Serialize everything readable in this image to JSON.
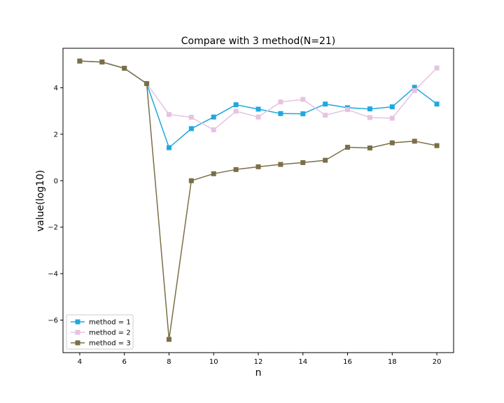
{
  "chart_data": {
    "type": "line",
    "title": "Compare with 3 method(N=21)",
    "xlabel": "n",
    "ylabel": "value(log10)",
    "xlim": [
      3.25,
      20.75
    ],
    "ylim": [
      -7.4,
      5.7
    ],
    "xticks": [
      4,
      6,
      8,
      10,
      12,
      14,
      16,
      18,
      20
    ],
    "yticks": [
      -6,
      -4,
      -2,
      0,
      2,
      4
    ],
    "ytick_labels": [
      "−6",
      "−4",
      "−2",
      "0",
      "2",
      "4"
    ],
    "grid": false,
    "legend_position": "lower-left",
    "x": [
      4,
      5,
      6,
      7,
      8,
      9,
      10,
      11,
      12,
      13,
      14,
      15,
      16,
      17,
      18,
      19,
      20
    ],
    "series": [
      {
        "name": "method = 1",
        "color": "#1fa8de",
        "values": [
          5.15,
          5.11,
          4.84,
          4.18,
          1.42,
          2.24,
          2.74,
          3.27,
          3.08,
          2.89,
          2.88,
          3.3,
          3.14,
          3.09,
          3.18,
          4.02,
          3.3
        ]
      },
      {
        "name": "method = 2",
        "color": "#e6c3e3",
        "values": [
          5.15,
          5.11,
          4.84,
          4.18,
          2.85,
          2.73,
          2.19,
          2.99,
          2.74,
          3.39,
          3.5,
          2.82,
          3.06,
          2.72,
          2.69,
          3.88,
          4.85
        ]
      },
      {
        "name": "method = 3",
        "color": "#7b6f48",
        "values": [
          5.15,
          5.11,
          4.84,
          4.18,
          -6.83,
          0.0,
          0.3,
          0.48,
          0.6,
          0.7,
          0.78,
          0.88,
          1.44,
          1.41,
          1.63,
          1.7,
          1.51
        ]
      }
    ]
  }
}
